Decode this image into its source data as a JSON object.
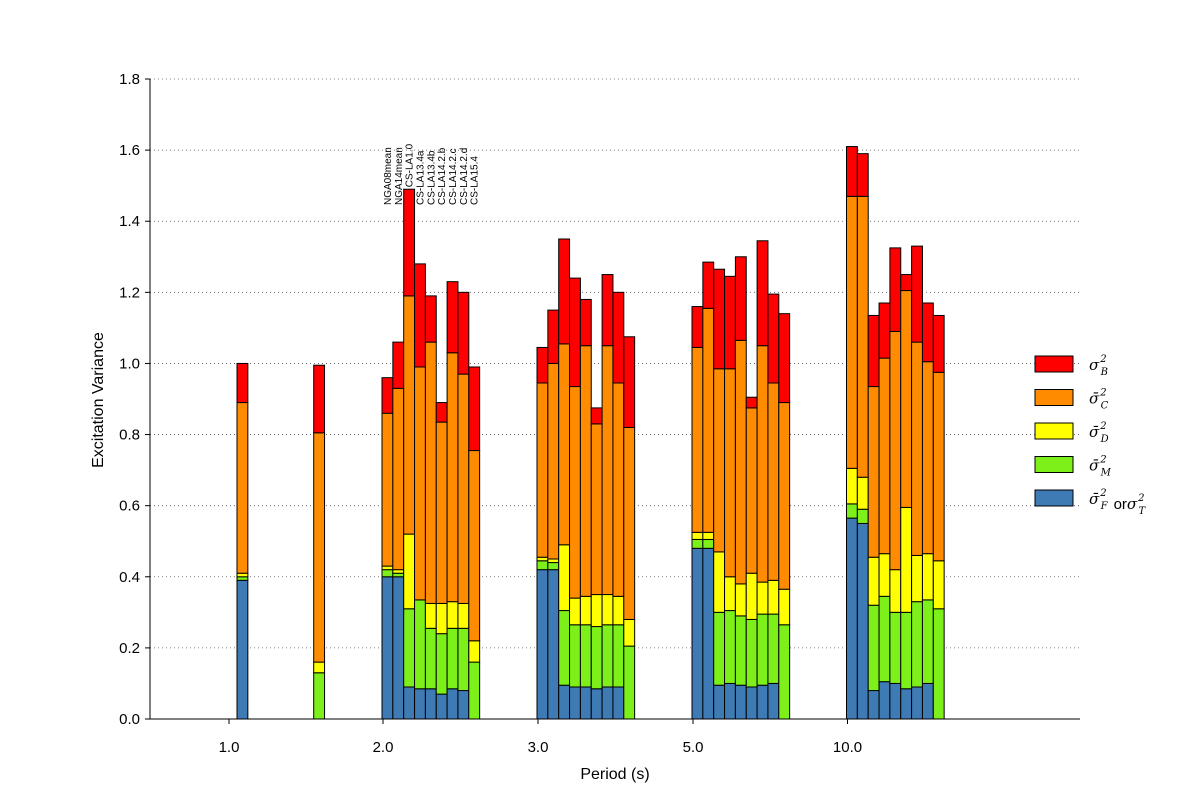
{
  "chart_data": {
    "type": "bar",
    "stacked": true,
    "xlabel": "Period (s)",
    "ylabel": "Excitation Variance",
    "ylim": [
      0,
      1.8
    ],
    "yticks": [
      "0.0",
      "0.2",
      "0.4",
      "0.6",
      "0.8",
      "1.0",
      "1.2",
      "1.4",
      "1.6",
      "1.8"
    ],
    "grid": "horizontal dotted",
    "legend_position": "right",
    "colors": {
      "F": "#3e7ab3",
      "M": "#7df01a",
      "D": "#ffff00",
      "C": "#ff8c00",
      "B": "#ff0000"
    },
    "legend": [
      {
        "key": "B",
        "base": "σ",
        "sup": "2",
        "sub": "B"
      },
      {
        "key": "C",
        "base": "σ̄",
        "sup": "2",
        "sub": "C"
      },
      {
        "key": "D",
        "base": "σ̄",
        "sup": "2",
        "sub": "D"
      },
      {
        "key": "M",
        "base": "σ̄",
        "sup": "2",
        "sub": "M"
      },
      {
        "key": "F",
        "base": "σ̄",
        "sup": "2",
        "sub": "F",
        "or": "or",
        "base2": "σ",
        "sup2": "2",
        "sub2": "T"
      }
    ],
    "model_labels": [
      "NGA08mean",
      "NGA14mean",
      "CS-LA1.0",
      "CS-LA13.4a",
      "CS-LA13.4b",
      "CS-LA14.2.b",
      "CS-LA14.2.c",
      "CS-LA14.2.d",
      "CS-LA15.4"
    ],
    "groups": [
      {
        "period": "1.0",
        "bars": [
          {
            "F": 0.39,
            "M": 0.01,
            "D": 0.01,
            "C": 0.48,
            "B": 0.11
          }
        ]
      },
      {
        "period": "",
        "bars": [
          {
            "F": 0.0,
            "M": 0.13,
            "D": 0.03,
            "C": 0.645,
            "B": 0.19
          }
        ]
      },
      {
        "period": "2.0",
        "bars": [
          {
            "F": 0.4,
            "M": 0.02,
            "D": 0.01,
            "C": 0.43,
            "B": 0.1
          },
          {
            "F": 0.4,
            "M": 0.01,
            "D": 0.01,
            "C": 0.51,
            "B": 0.13
          },
          {
            "F": 0.09,
            "M": 0.22,
            "D": 0.21,
            "C": 0.67,
            "B": 0.3
          },
          {
            "F": 0.085,
            "M": 0.25,
            "D": 0.0,
            "C": 0.655,
            "B": 0.29
          },
          {
            "F": 0.085,
            "M": 0.17,
            "D": 0.07,
            "C": 0.735,
            "B": 0.13
          },
          {
            "F": 0.07,
            "M": 0.17,
            "D": 0.085,
            "C": 0.51,
            "B": 0.055
          },
          {
            "F": 0.085,
            "M": 0.17,
            "D": 0.075,
            "C": 0.7,
            "B": 0.2
          },
          {
            "F": 0.08,
            "M": 0.175,
            "D": 0.07,
            "C": 0.645,
            "B": 0.23
          },
          {
            "F": 0.0,
            "M": 0.16,
            "D": 0.06,
            "C": 0.535,
            "B": 0.235
          }
        ]
      },
      {
        "period": "3.0",
        "bars": [
          {
            "F": 0.42,
            "M": 0.025,
            "D": 0.01,
            "C": 0.49,
            "B": 0.1
          },
          {
            "F": 0.42,
            "M": 0.02,
            "D": 0.01,
            "C": 0.55,
            "B": 0.15
          },
          {
            "F": 0.095,
            "M": 0.21,
            "D": 0.185,
            "C": 0.565,
            "B": 0.295
          },
          {
            "F": 0.09,
            "M": 0.175,
            "D": 0.075,
            "C": 0.595,
            "B": 0.305
          },
          {
            "F": 0.09,
            "M": 0.175,
            "D": 0.08,
            "C": 0.705,
            "B": 0.13
          },
          {
            "F": 0.085,
            "M": 0.175,
            "D": 0.09,
            "C": 0.48,
            "B": 0.045
          },
          {
            "F": 0.09,
            "M": 0.175,
            "D": 0.085,
            "C": 0.7,
            "B": 0.2
          },
          {
            "F": 0.09,
            "M": 0.175,
            "D": 0.08,
            "C": 0.6,
            "B": 0.255
          },
          {
            "F": 0.0,
            "M": 0.205,
            "D": 0.075,
            "C": 0.54,
            "B": 0.255
          }
        ]
      },
      {
        "period": "5.0",
        "bars": [
          {
            "F": 0.48,
            "M": 0.025,
            "D": 0.02,
            "C": 0.52,
            "B": 0.115
          },
          {
            "F": 0.48,
            "M": 0.025,
            "D": 0.02,
            "C": 0.63,
            "B": 0.13
          },
          {
            "F": 0.095,
            "M": 0.205,
            "D": 0.17,
            "C": 0.515,
            "B": 0.28
          },
          {
            "F": 0.1,
            "M": 0.205,
            "D": 0.095,
            "C": 0.585,
            "B": 0.26
          },
          {
            "F": 0.095,
            "M": 0.195,
            "D": 0.09,
            "C": 0.685,
            "B": 0.235
          },
          {
            "F": 0.09,
            "M": 0.19,
            "D": 0.13,
            "C": 0.465,
            "B": 0.03
          },
          {
            "F": 0.095,
            "M": 0.2,
            "D": 0.09,
            "C": 0.665,
            "B": 0.295
          },
          {
            "F": 0.1,
            "M": 0.195,
            "D": 0.095,
            "C": 0.555,
            "B": 0.25
          },
          {
            "F": 0.0,
            "M": 0.265,
            "D": 0.1,
            "C": 0.525,
            "B": 0.25
          }
        ]
      },
      {
        "period": "10.0",
        "bars": [
          {
            "F": 0.565,
            "M": 0.04,
            "D": 0.1,
            "C": 0.765,
            "B": 0.14
          },
          {
            "F": 0.55,
            "M": 0.04,
            "D": 0.09,
            "C": 0.79,
            "B": 0.12
          },
          {
            "F": 0.08,
            "M": 0.24,
            "D": 0.135,
            "C": 0.48,
            "B": 0.2
          },
          {
            "F": 0.105,
            "M": 0.24,
            "D": 0.12,
            "C": 0.55,
            "B": 0.155
          },
          {
            "F": 0.1,
            "M": 0.2,
            "D": 0.12,
            "C": 0.67,
            "B": 0.235
          },
          {
            "F": 0.085,
            "M": 0.215,
            "D": 0.295,
            "C": 0.61,
            "B": 0.045
          },
          {
            "F": 0.09,
            "M": 0.24,
            "D": 0.13,
            "C": 0.6,
            "B": 0.27
          },
          {
            "F": 0.1,
            "M": 0.235,
            "D": 0.13,
            "C": 0.54,
            "B": 0.165
          },
          {
            "F": 0.0,
            "M": 0.31,
            "D": 0.135,
            "C": 0.53,
            "B": 0.16
          }
        ]
      }
    ]
  }
}
